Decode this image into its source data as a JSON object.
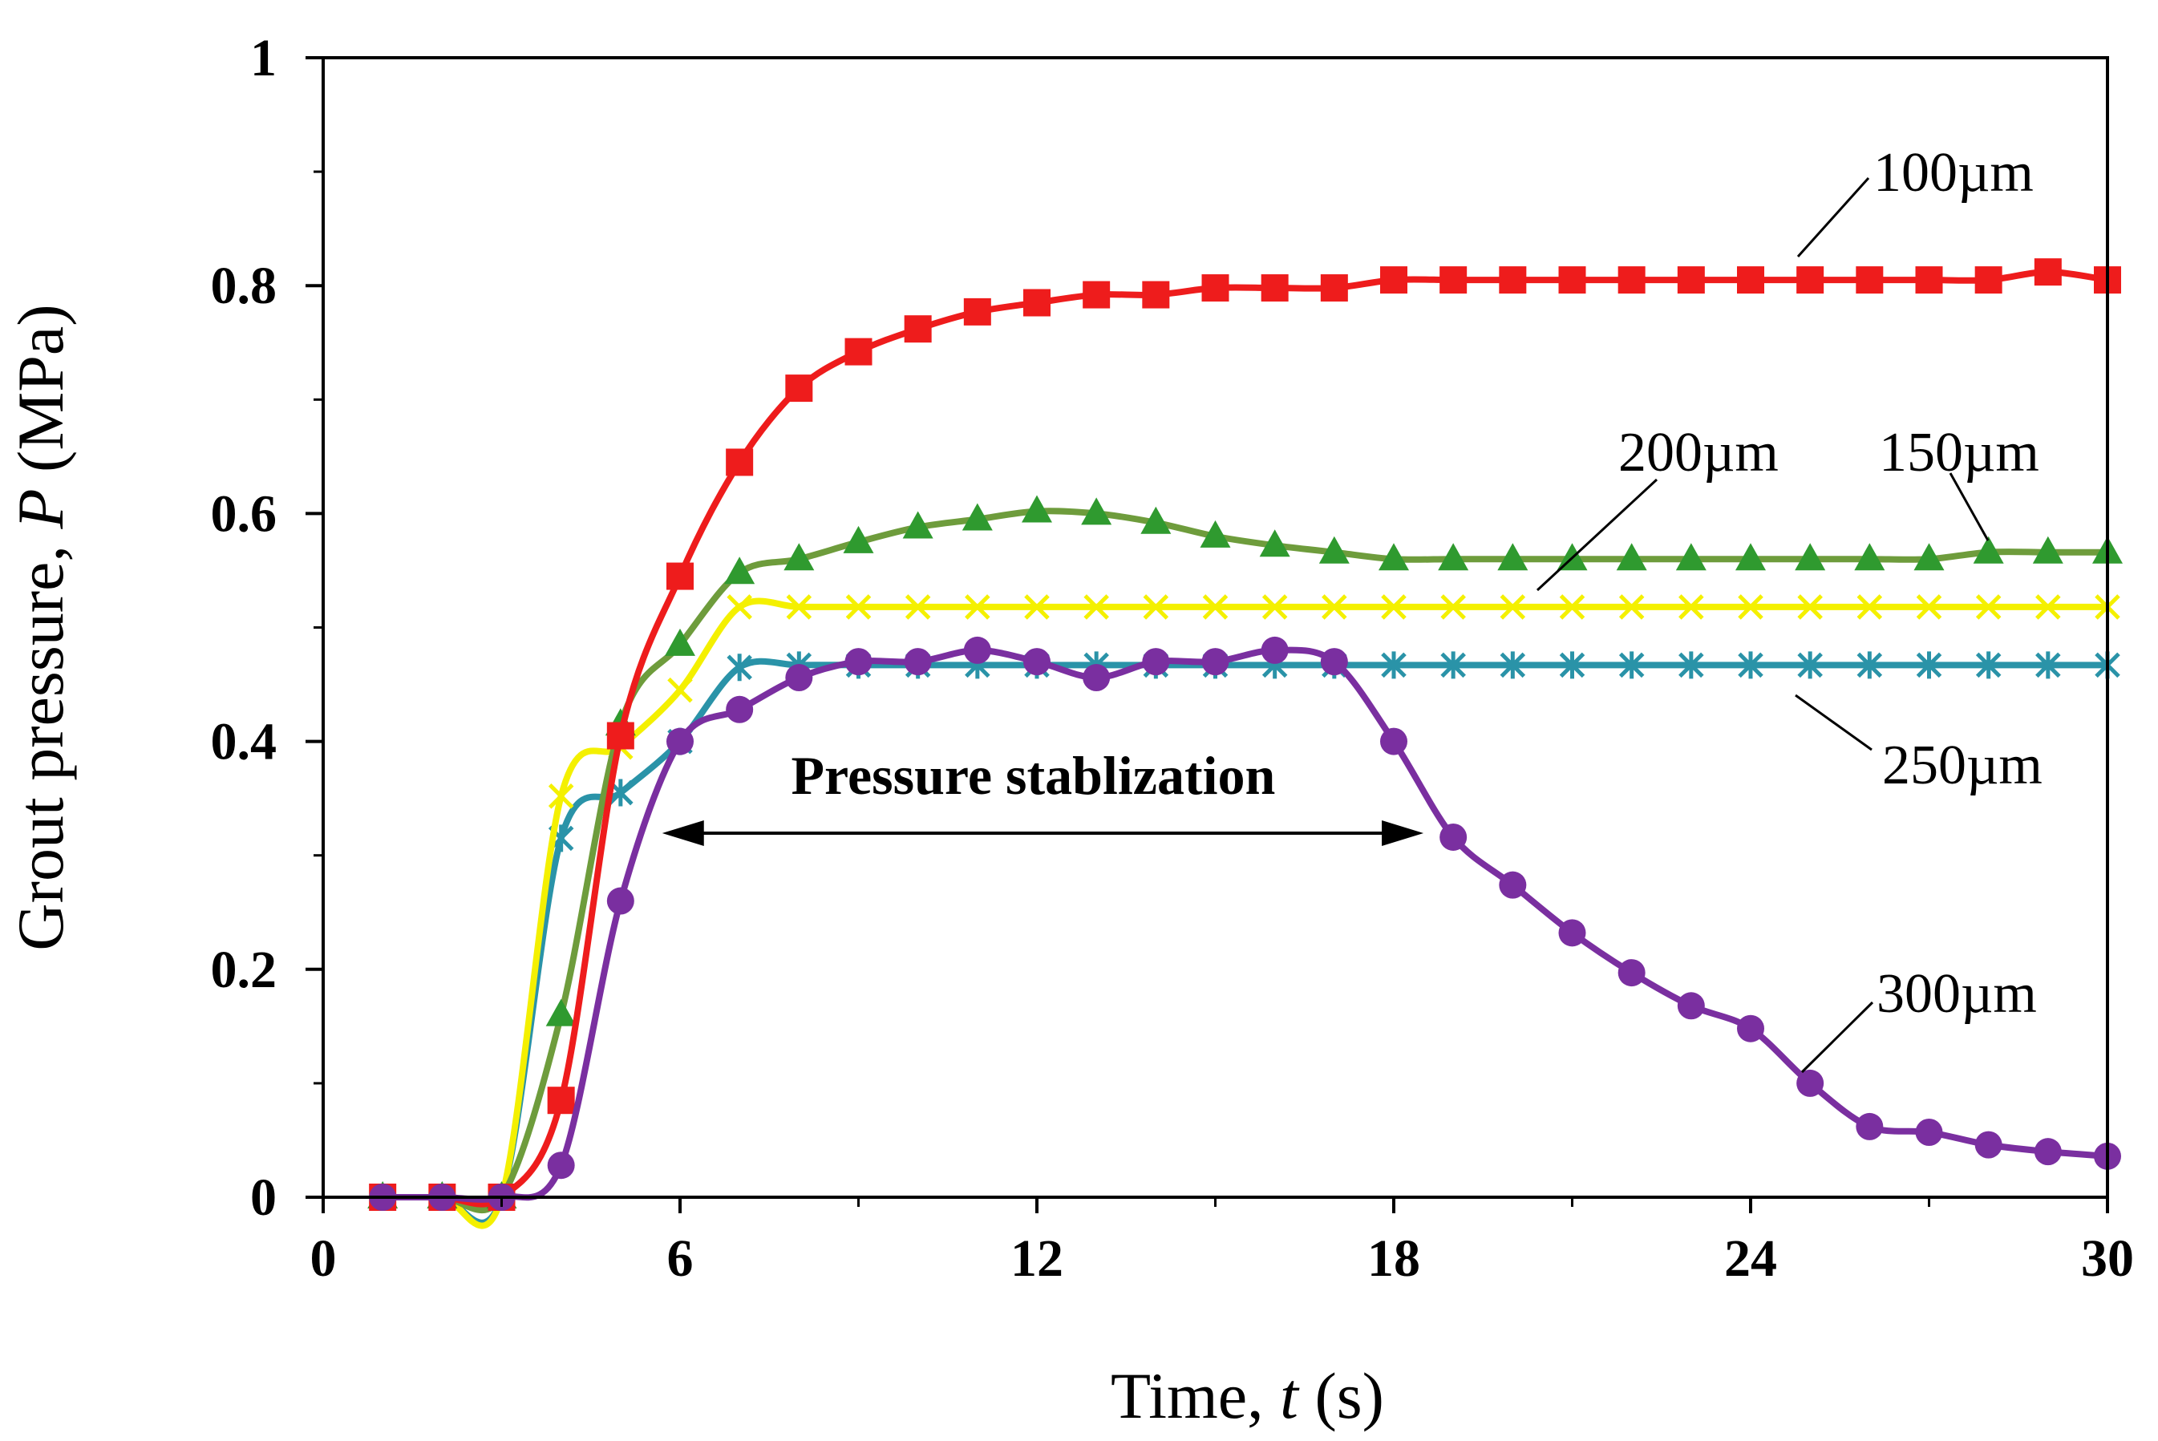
{
  "chart_data": {
    "type": "line",
    "xlabel_prefix": "Time, ",
    "xlabel_var": "t",
    "xlabel_suffix": " (s)",
    "ylabel_prefix": "Grout pressure, ",
    "ylabel_var": "P",
    "ylabel_suffix": " (MPa)",
    "xlim": [
      0,
      30
    ],
    "ylim": [
      0,
      1
    ],
    "xticks": [
      0,
      6,
      12,
      18,
      24,
      30
    ],
    "xtick_labels": [
      "0",
      "6",
      "12",
      "18",
      "24",
      "30"
    ],
    "yticks": [
      0,
      0.2,
      0.4,
      0.6,
      0.8,
      1
    ],
    "ytick_labels": [
      "0",
      "0.2",
      "0.4",
      "0.6",
      "0.8",
      "1"
    ],
    "grid": false,
    "x": [
      1,
      2,
      3,
      4,
      5,
      6,
      7,
      8,
      9,
      10,
      11,
      12,
      13,
      14,
      15,
      16,
      17,
      18,
      19,
      20,
      21,
      22,
      23,
      24,
      25,
      26,
      27,
      28,
      29,
      30
    ],
    "series": [
      {
        "name": "100µm",
        "color": "#ee1c1c",
        "marker": "square",
        "values": [
          0,
          0,
          0,
          0.085,
          0.405,
          0.545,
          0.645,
          0.71,
          0.742,
          0.762,
          0.777,
          0.785,
          0.792,
          0.792,
          0.798,
          0.798,
          0.798,
          0.805,
          0.805,
          0.805,
          0.805,
          0.805,
          0.805,
          0.805,
          0.805,
          0.805,
          0.805,
          0.805,
          0.812,
          0.805
        ]
      },
      {
        "name": "150µm",
        "color": "#6e9c3c",
        "marker_color": "#2f9a2f",
        "marker": "triangle",
        "values": [
          0,
          0,
          0,
          0.16,
          0.415,
          0.485,
          0.548,
          0.56,
          0.575,
          0.588,
          0.595,
          0.602,
          0.6,
          0.592,
          0.58,
          0.572,
          0.566,
          0.56,
          0.56,
          0.56,
          0.56,
          0.56,
          0.56,
          0.56,
          0.56,
          0.56,
          0.56,
          0.566,
          0.566,
          0.566
        ]
      },
      {
        "name": "200µm",
        "color": "#f4f000",
        "marker": "x",
        "values": [
          0,
          0,
          0,
          0.352,
          0.395,
          0.445,
          0.518,
          0.518,
          0.518,
          0.518,
          0.518,
          0.518,
          0.518,
          0.518,
          0.518,
          0.518,
          0.518,
          0.518,
          0.518,
          0.518,
          0.518,
          0.518,
          0.518,
          0.518,
          0.518,
          0.518,
          0.518,
          0.518,
          0.518,
          0.518
        ]
      },
      {
        "name": "250µm",
        "color": "#2a93a8",
        "marker": "asterisk",
        "values": [
          0,
          0,
          0,
          0.315,
          0.355,
          0.4,
          0.465,
          0.467,
          0.467,
          0.467,
          0.467,
          0.467,
          0.467,
          0.467,
          0.467,
          0.467,
          0.467,
          0.467,
          0.467,
          0.467,
          0.467,
          0.467,
          0.467,
          0.467,
          0.467,
          0.467,
          0.467,
          0.467,
          0.467,
          0.467
        ]
      },
      {
        "name": "300µm",
        "color": "#7a2fa0",
        "marker": "circle",
        "values": [
          0,
          0,
          0,
          0.028,
          0.26,
          0.4,
          0.428,
          0.456,
          0.47,
          0.47,
          0.48,
          0.47,
          0.456,
          0.47,
          0.47,
          0.48,
          0.47,
          0.4,
          0.316,
          0.274,
          0.232,
          0.197,
          0.168,
          0.148,
          0.1,
          0.062,
          0.057,
          0.046,
          0.04,
          0.036
        ]
      }
    ],
    "series_labels": [
      {
        "text": "100µm",
        "series": "100µm"
      },
      {
        "text": "150µm",
        "series": "150µm"
      },
      {
        "text": "200µm",
        "series": "200µm"
      },
      {
        "text": "250µm",
        "series": "250µm"
      },
      {
        "text": "300µm",
        "series": "300µm"
      }
    ],
    "annotation": {
      "text": "Pressure stablization",
      "x_start": 5.7,
      "x_end": 18.5
    }
  }
}
